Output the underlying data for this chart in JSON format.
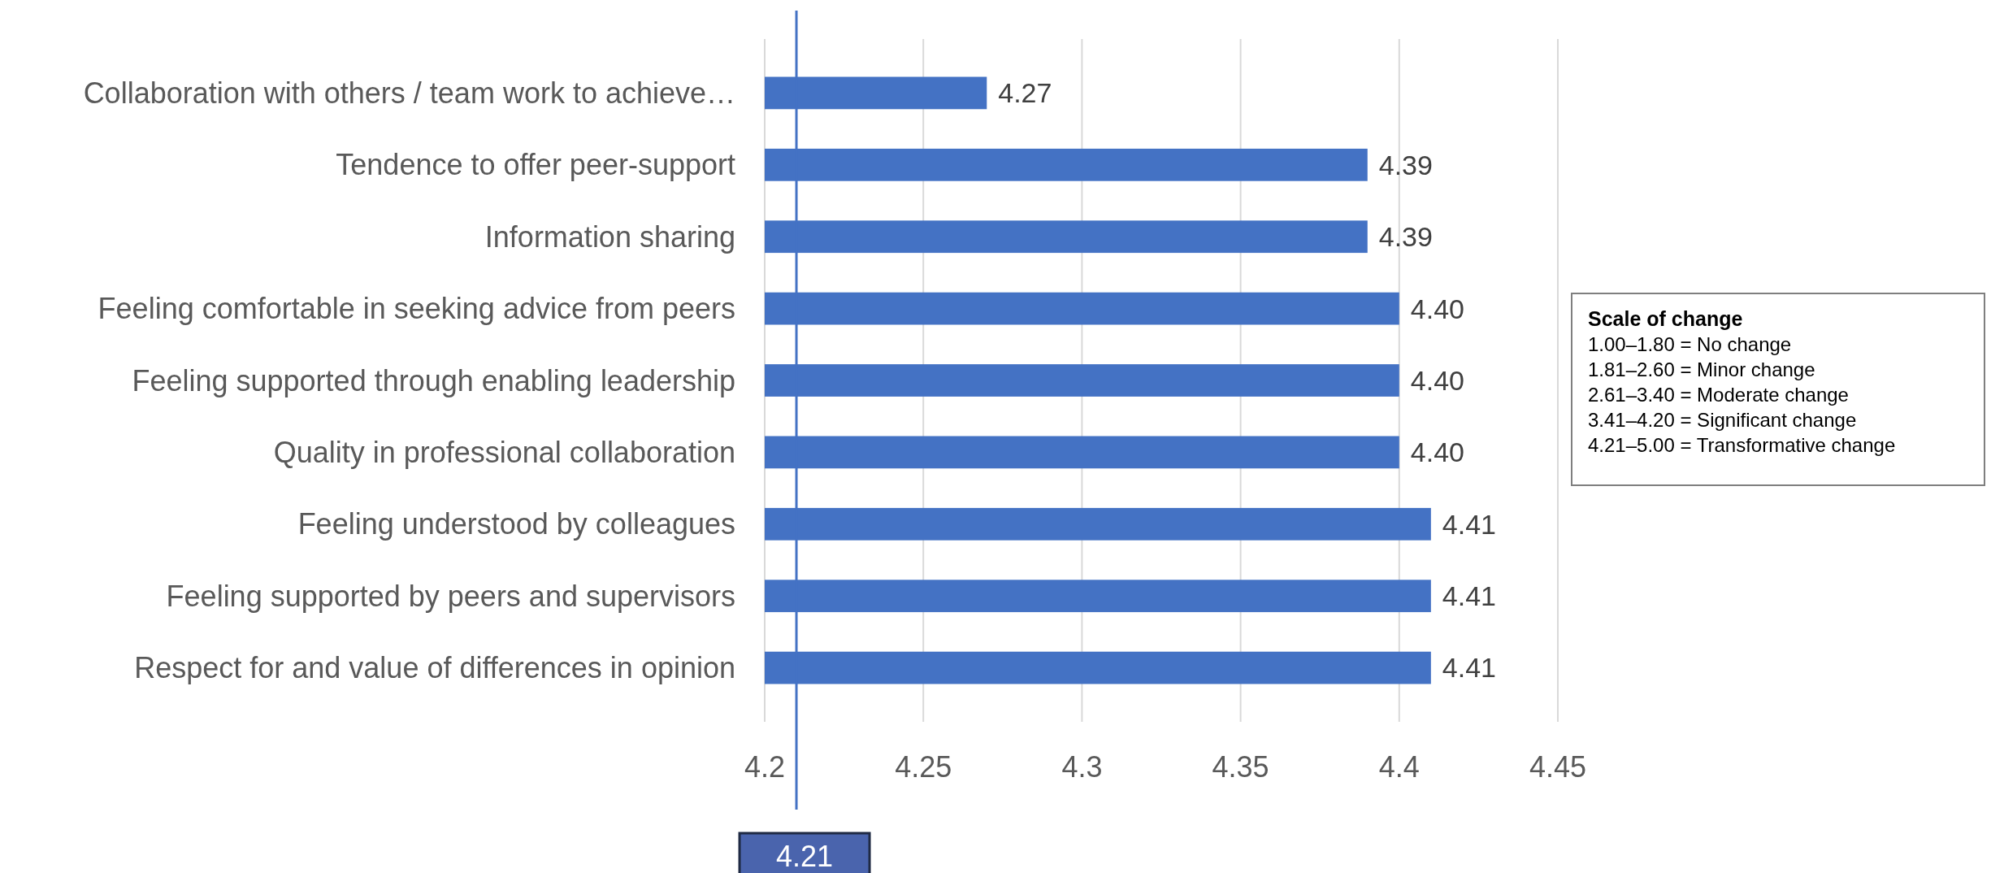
{
  "chart_data": {
    "type": "bar",
    "orientation": "horizontal",
    "categories": [
      "Collaboration with others / team work to achieve…",
      "Tendence to offer peer-support",
      "Information sharing",
      "Feeling comfortable in seeking advice from peers",
      "Feeling supported through enabling leadership",
      "Quality in professional collaboration",
      "Feeling understood by colleagues",
      "Feeling supported by peers and supervisors",
      "Respect for and value of differences in opinion"
    ],
    "values": [
      4.27,
      4.39,
      4.39,
      4.4,
      4.4,
      4.4,
      4.41,
      4.41,
      4.41
    ],
    "value_labels": [
      "4.27",
      "4.39",
      "4.39",
      "4.40",
      "4.40",
      "4.40",
      "4.41",
      "4.41",
      "4.41"
    ],
    "color": "#4472c4",
    "xlim": [
      4.2,
      4.45
    ],
    "xticks": [
      4.2,
      4.25,
      4.3,
      4.35,
      4.4,
      4.45
    ],
    "grid": "x",
    "ref_lines": [
      {
        "axis": "x",
        "value": 4.21,
        "label": "4.21",
        "color": "#4472c4"
      }
    ],
    "annotations": [
      "Scale of change",
      "1.00–1.80 = No change",
      "1.81–2.60 = Minor change",
      "2.61–3.40 = Moderate change",
      "3.41–4.20 = Significant change",
      "4.21–5.00 = Transformative change"
    ]
  }
}
